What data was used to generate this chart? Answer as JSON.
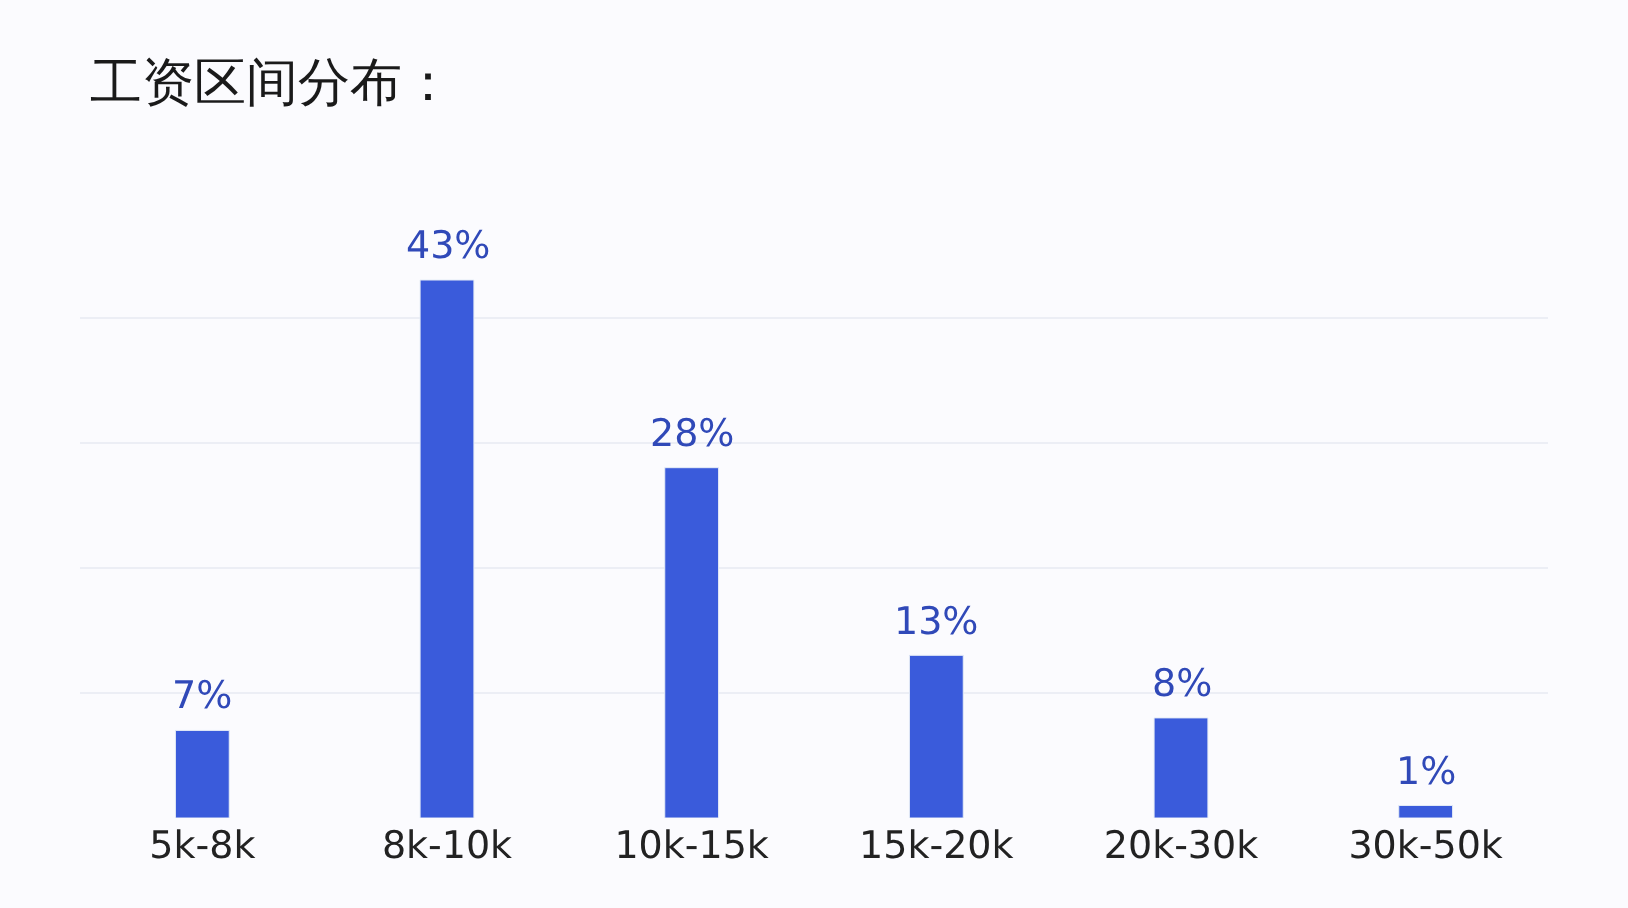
{
  "chart_data": {
    "type": "bar",
    "title": "工资区间分布：",
    "categories": [
      "5k-8k",
      "8k-10k",
      "10k-15k",
      "15k-20k",
      "20k-30k",
      "30k-50k"
    ],
    "series": [
      {
        "color": "#3a5bdb",
        "values": [
          7,
          43,
          28,
          13,
          8,
          1
        ],
        "value_labels": [
          "7%",
          "43%",
          "28%",
          "13%",
          "8%",
          "1%"
        ]
      }
    ],
    "grid": "y",
    "tick_labels": "x"
  }
}
